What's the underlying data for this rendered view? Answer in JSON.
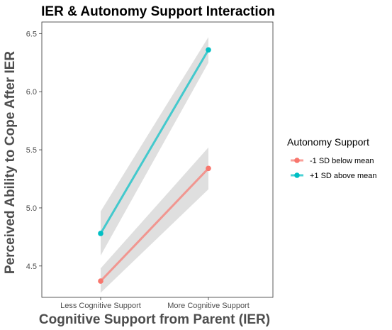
{
  "chart_data": {
    "type": "line",
    "title": "IER & Autonomy Support Interaction",
    "xlabel": "Cognitive Support from Parent (IER)",
    "ylabel": "Perceived Ability to Cope After IER",
    "categories": [
      "Less Cognitive Support",
      "More Cognitive Support"
    ],
    "ylim": [
      4.23,
      6.6
    ],
    "yticks": [
      4.5,
      5.0,
      5.5,
      6.0,
      6.5
    ],
    "ytick_labels": [
      "4.5",
      "5.0",
      "5.5",
      "6.0",
      "6.5"
    ],
    "grid": false,
    "legend": {
      "title": "Autonomy Support",
      "position": "right"
    },
    "series": [
      {
        "name": "-1 SD below mean",
        "color": "#F8766D",
        "values": [
          4.37,
          5.34
        ],
        "ci_lower": [
          4.27,
          5.16
        ],
        "ci_upper": [
          4.48,
          5.52
        ]
      },
      {
        "name": "+1 SD above mean",
        "color": "#00BFC4",
        "values": [
          4.78,
          6.36
        ],
        "ci_lower": [
          4.59,
          6.25
        ],
        "ci_upper": [
          4.97,
          6.47
        ]
      }
    ],
    "ribbon_color": "#d9d9d9"
  }
}
